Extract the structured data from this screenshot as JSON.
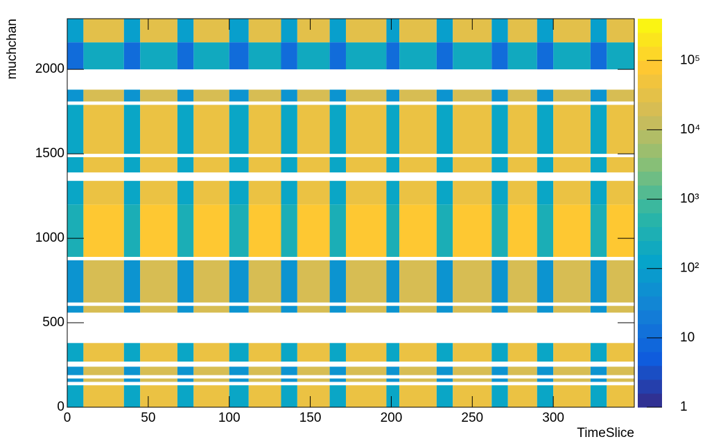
{
  "chart_data": {
    "type": "heatmap",
    "x_label": "TimeSlice",
    "y_label": "muchchan",
    "xlim": [
      0,
      350
    ],
    "ylim": [
      0,
      2300
    ],
    "zlim": [
      1,
      400000
    ],
    "z_log": true,
    "xticks": [
      0,
      50,
      100,
      150,
      200,
      250,
      300
    ],
    "yticks": [
      0,
      500,
      1000,
      1500,
      2000
    ],
    "zticks": [
      1,
      10,
      {
        "value": 100,
        "label": "10²"
      },
      {
        "value": 1000,
        "label": "10³"
      },
      {
        "value": 10000,
        "label": "10⁴"
      },
      {
        "value": 100000,
        "label": "10⁵"
      }
    ],
    "colorscale": [
      "#352a87",
      "#0f5cdd",
      "#1481d6",
      "#06a4ca",
      "#2eb7a4",
      "#87bf77",
      "#d1bb59",
      "#fec832",
      "#f9fb0e"
    ],
    "xbins": [
      0,
      10,
      35,
      45,
      68,
      78,
      100,
      112,
      132,
      142,
      162,
      172,
      197,
      205,
      228,
      238,
      262,
      272,
      290,
      300,
      323,
      333,
      350
    ],
    "ybins": [
      0,
      130,
      150,
      170,
      190,
      240,
      270,
      380,
      560,
      600,
      620,
      870,
      890,
      1200,
      1340,
      1390,
      1480,
      1500,
      1790,
      1810,
      1880,
      2000,
      2160,
      2300
    ],
    "z": [
      [
        150,
        40000,
        150,
        40000,
        150,
        40000,
        150,
        40000,
        150,
        40000,
        150,
        40000,
        150,
        40000,
        150,
        40000,
        150,
        40000,
        150,
        40000,
        150,
        40000
      ],
      [
        null,
        null,
        null,
        null,
        null,
        null,
        null,
        null,
        null,
        null,
        null,
        null,
        null,
        null,
        null,
        null,
        null,
        null,
        null,
        null,
        null,
        null
      ],
      [
        60,
        20000,
        60,
        20000,
        60,
        20000,
        60,
        20000,
        60,
        20000,
        60,
        20000,
        60,
        20000,
        60,
        20000,
        60,
        20000,
        60,
        20000,
        60,
        20000
      ],
      [
        null,
        null,
        null,
        null,
        null,
        null,
        null,
        null,
        null,
        null,
        null,
        null,
        null,
        null,
        null,
        null,
        null,
        null,
        null,
        null,
        null,
        null
      ],
      [
        60,
        20000,
        60,
        20000,
        60,
        20000,
        60,
        20000,
        60,
        20000,
        60,
        20000,
        60,
        20000,
        60,
        20000,
        60,
        20000,
        60,
        20000,
        60,
        20000
      ],
      [
        null,
        null,
        null,
        null,
        null,
        null,
        null,
        null,
        null,
        null,
        null,
        null,
        null,
        null,
        null,
        null,
        null,
        null,
        null,
        null,
        null,
        null
      ],
      [
        150,
        40000,
        150,
        40000,
        150,
        40000,
        150,
        40000,
        150,
        40000,
        150,
        40000,
        150,
        40000,
        150,
        40000,
        150,
        40000,
        150,
        40000,
        150,
        40000
      ],
      [
        null,
        null,
        null,
        null,
        null,
        null,
        null,
        null,
        null,
        null,
        null,
        null,
        null,
        null,
        null,
        null,
        null,
        null,
        null,
        null,
        null,
        null
      ],
      [
        60,
        20000,
        60,
        20000,
        60,
        20000,
        60,
        20000,
        60,
        20000,
        60,
        20000,
        60,
        20000,
        60,
        20000,
        60,
        20000,
        60,
        20000,
        60,
        20000
      ],
      [
        null,
        null,
        null,
        null,
        null,
        null,
        null,
        null,
        null,
        null,
        null,
        null,
        null,
        null,
        null,
        null,
        null,
        null,
        null,
        null,
        null,
        null
      ],
      [
        60,
        20000,
        60,
        20000,
        60,
        20000,
        60,
        20000,
        60,
        20000,
        60,
        20000,
        60,
        20000,
        60,
        20000,
        60,
        20000,
        60,
        20000,
        60,
        20000
      ],
      [
        null,
        null,
        null,
        null,
        null,
        null,
        null,
        null,
        null,
        null,
        null,
        null,
        null,
        null,
        null,
        null,
        null,
        null,
        null,
        null,
        null,
        null
      ],
      [
        300,
        80000,
        300,
        80000,
        300,
        80000,
        300,
        80000,
        300,
        80000,
        300,
        80000,
        300,
        80000,
        300,
        80000,
        300,
        80000,
        300,
        80000,
        300,
        80000
      ],
      [
        150,
        40000,
        150,
        40000,
        150,
        40000,
        150,
        40000,
        150,
        40000,
        150,
        40000,
        150,
        40000,
        150,
        40000,
        150,
        40000,
        150,
        40000,
        150,
        40000
      ],
      [
        null,
        null,
        null,
        null,
        null,
        null,
        null,
        null,
        null,
        null,
        null,
        null,
        null,
        null,
        null,
        null,
        null,
        null,
        null,
        null,
        null,
        null
      ],
      [
        150,
        40000,
        150,
        40000,
        150,
        40000,
        150,
        40000,
        150,
        40000,
        150,
        40000,
        150,
        40000,
        150,
        40000,
        150,
        40000,
        150,
        40000,
        150,
        40000
      ],
      [
        null,
        null,
        null,
        null,
        null,
        null,
        null,
        null,
        null,
        null,
        null,
        null,
        null,
        null,
        null,
        null,
        null,
        null,
        null,
        null,
        null,
        null
      ],
      [
        150,
        40000,
        150,
        40000,
        150,
        40000,
        150,
        40000,
        150,
        40000,
        150,
        40000,
        150,
        40000,
        150,
        40000,
        150,
        40000,
        150,
        40000,
        150,
        40000
      ],
      [
        null,
        null,
        null,
        null,
        null,
        null,
        null,
        null,
        null,
        null,
        null,
        null,
        null,
        null,
        null,
        null,
        null,
        null,
        null,
        null,
        null,
        null
      ],
      [
        60,
        20000,
        60,
        20000,
        60,
        20000,
        60,
        20000,
        60,
        20000,
        60,
        20000,
        60,
        20000,
        60,
        20000,
        60,
        20000,
        60,
        20000,
        60,
        20000
      ],
      [
        null,
        null,
        null,
        null,
        null,
        null,
        null,
        null,
        null,
        null,
        null,
        null,
        null,
        null,
        null,
        null,
        null,
        null,
        null,
        null,
        null,
        null
      ],
      [
        10,
        200,
        10,
        200,
        10,
        200,
        10,
        200,
        10,
        200,
        10,
        200,
        10,
        200,
        10,
        200,
        10,
        200,
        10,
        200,
        10,
        200
      ],
      [
        100,
        30000,
        100,
        30000,
        100,
        30000,
        100,
        30000,
        100,
        30000,
        100,
        30000,
        100,
        30000,
        100,
        30000,
        100,
        30000,
        100,
        30000,
        100,
        30000
      ]
    ]
  }
}
